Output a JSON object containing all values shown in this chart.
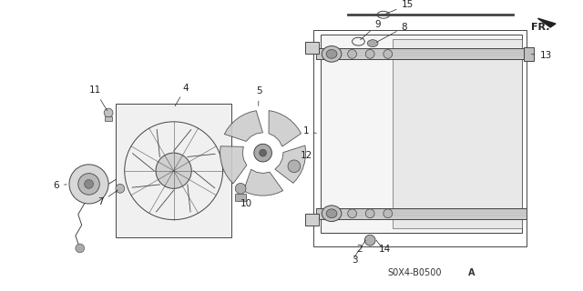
{
  "background_color": "#ffffff",
  "part_number_text": "S0X4-B0500 A",
  "line_color": "#444444",
  "light_gray": "#bbbbbb",
  "mid_gray": "#888888",
  "dark_gray": "#555555"
}
